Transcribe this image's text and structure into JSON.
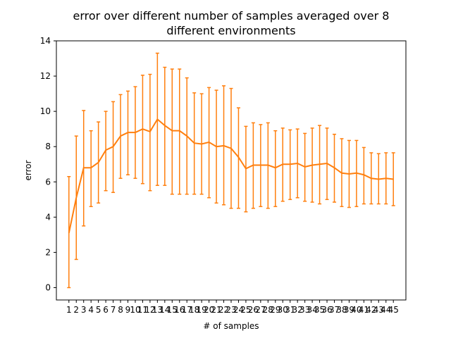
{
  "chart_data": {
    "type": "line",
    "title": "error over different number of samples averaged over 8\ndifferent environments",
    "xlabel": "# of samples",
    "ylabel": "error",
    "x": [
      1,
      2,
      3,
      4,
      5,
      6,
      7,
      8,
      9,
      10,
      11,
      12,
      13,
      14,
      15,
      16,
      17,
      18,
      19,
      20,
      21,
      22,
      23,
      24,
      25,
      26,
      27,
      28,
      29,
      30,
      31,
      32,
      33,
      34,
      35,
      36,
      37,
      38,
      39,
      40,
      41,
      42,
      43,
      44,
      45
    ],
    "xtick_labels": [
      "1",
      "2",
      "3",
      "4",
      "5",
      "6",
      "7",
      "8",
      "9",
      "10",
      "11",
      "12",
      "13",
      "14",
      "15",
      "16",
      "17",
      "18",
      "19",
      "20",
      "21",
      "22",
      "23",
      "24",
      "25",
      "26",
      "27",
      "28",
      "29",
      "30",
      "31",
      "32",
      "33",
      "34",
      "35",
      "36",
      "37",
      "38",
      "39",
      "40",
      "41",
      "42",
      "43",
      "44",
      "45"
    ],
    "series": [
      {
        "values": [
          3.1,
          5.1,
          6.8,
          6.8,
          7.1,
          7.8,
          8.0,
          8.6,
          8.8,
          8.8,
          9.0,
          8.85,
          9.55,
          9.2,
          8.9,
          8.9,
          8.6,
          8.2,
          8.15,
          8.25,
          8.0,
          8.05,
          7.9,
          7.4,
          6.75,
          6.95,
          6.95,
          6.95,
          6.8,
          7.0,
          7.0,
          7.05,
          6.85,
          6.95,
          7.0,
          7.05,
          6.8,
          6.5,
          6.45,
          6.5,
          6.4,
          6.2,
          6.15,
          6.2,
          6.15
        ],
        "err_low": [
          0.0,
          1.6,
          3.5,
          4.6,
          4.8,
          5.5,
          5.4,
          6.2,
          6.4,
          6.2,
          5.9,
          5.5,
          5.8,
          5.8,
          5.3,
          5.3,
          5.3,
          5.3,
          5.3,
          5.1,
          4.8,
          4.7,
          4.5,
          4.5,
          4.3,
          4.5,
          4.6,
          4.5,
          4.6,
          4.9,
          5.0,
          5.1,
          4.9,
          4.85,
          4.75,
          5.0,
          4.85,
          4.6,
          4.55,
          4.6,
          4.75,
          4.75,
          4.75,
          4.75,
          4.65
        ],
        "err_high": [
          6.3,
          8.6,
          10.05,
          8.9,
          9.4,
          10.0,
          10.55,
          10.95,
          11.15,
          11.4,
          12.05,
          12.1,
          13.3,
          12.5,
          12.4,
          12.4,
          11.9,
          11.05,
          11.0,
          11.35,
          11.2,
          11.45,
          11.3,
          10.2,
          9.15,
          9.35,
          9.25,
          9.35,
          8.9,
          9.05,
          8.95,
          9.0,
          8.75,
          9.05,
          9.2,
          9.05,
          8.7,
          8.45,
          8.35,
          8.35,
          7.95,
          7.65,
          7.6,
          7.65,
          7.65
        ],
        "color": "#ff7f0e"
      }
    ],
    "ylim": [
      -0.7,
      14
    ],
    "yticks": [
      0,
      2,
      4,
      6,
      8,
      10,
      12,
      14
    ],
    "xlim": [
      -0.7,
      46.7
    ],
    "grid": false
  }
}
